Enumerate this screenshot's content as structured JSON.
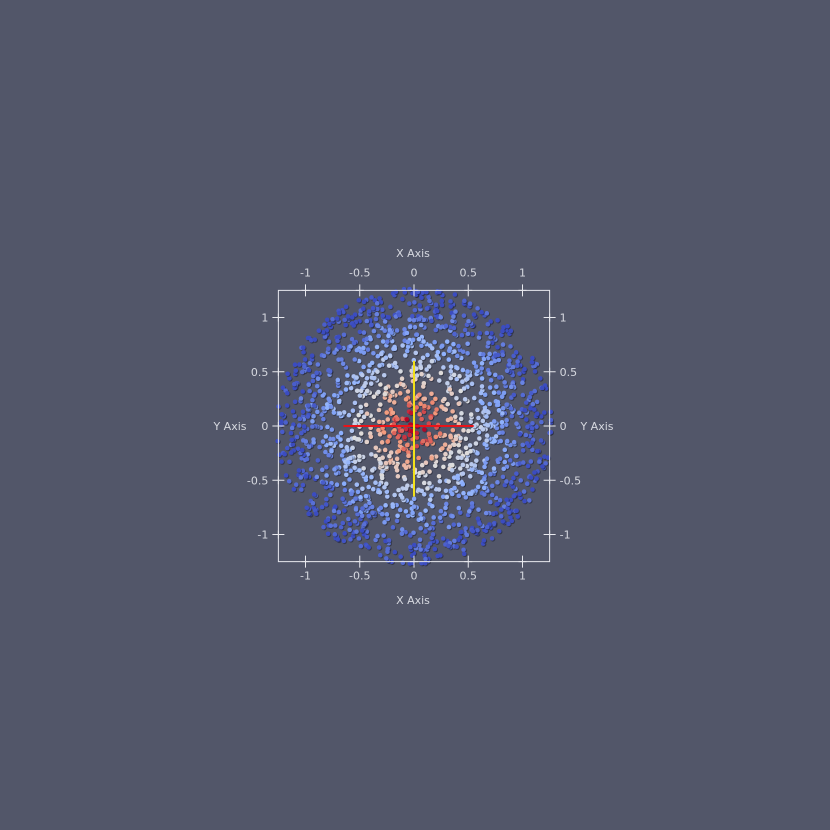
{
  "background_color": "#525669",
  "chart_data": {
    "type": "scatter",
    "title": "",
    "xlabel": "X Axis",
    "ylabel": "Y Axis",
    "xlim": [
      -1.25,
      1.25
    ],
    "ylim": [
      -1.25,
      1.25
    ],
    "x_ticks": [
      -1,
      -0.5,
      0,
      0.5,
      1
    ],
    "y_ticks": [
      -1,
      -0.5,
      0,
      0.5,
      1
    ],
    "x_tick_labels": [
      "-1",
      "-0.5",
      "0",
      "0.5",
      "1"
    ],
    "y_tick_labels": [
      "-1",
      "-0.5",
      "0",
      "0.5",
      "1"
    ],
    "grid": false,
    "point_cloud": {
      "shape": "disc",
      "center": [
        0,
        0
      ],
      "radius": 1.27,
      "approx_point_count": 1600,
      "colormap": [
        "#3b4cc0",
        "#8db0fe",
        "#dddddd",
        "#f49a7b",
        "#b40426"
      ],
      "color_by": "distance from center (high at center, low at edge)"
    },
    "center_lines": [
      {
        "orientation": "horizontal",
        "x_range": [
          -0.65,
          0.55
        ],
        "y": 0,
        "color": "#e8141a"
      },
      {
        "orientation": "vertical",
        "y_range": [
          -0.65,
          0.6
        ],
        "x": 0,
        "color": "#f2e01a"
      }
    ]
  }
}
